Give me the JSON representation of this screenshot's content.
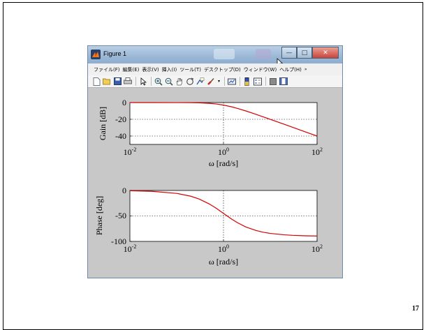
{
  "slide": {
    "page_number": "17"
  },
  "window": {
    "title": "Figure 1",
    "controls": {
      "minimize": "—",
      "maximize": "□",
      "close": "✕"
    }
  },
  "menubar": {
    "items": [
      "ファイル(F)",
      "編集(E)",
      "表示(V)",
      "挿入(I)",
      "ツール(T)",
      "デスクトップ(D)",
      "ウィンドウ(W)",
      "ヘルプ(H)"
    ],
    "overflow": "»"
  },
  "toolbar": {
    "icons": [
      "new-figure-icon",
      "open-file-icon",
      "save-icon",
      "print-icon",
      "edit-plot-arrow-icon",
      "zoom-in-icon",
      "zoom-out-icon",
      "pan-hand-icon",
      "rotate-3d-icon",
      "data-cursor-icon",
      "brush-icon",
      "link-plot-icon",
      "colorbar-icon",
      "legend-icon",
      "hide-plot-tools-icon",
      "show-plot-tools-icon"
    ]
  },
  "colors": {
    "curve": "#d40000",
    "axes_bg": "#ffffff",
    "figure_bg": "#c8c8c8"
  },
  "chart_data": [
    {
      "type": "line",
      "series_name": "",
      "xscale": "log",
      "xlim": [
        0.01,
        100
      ],
      "ylim": [
        -50,
        0
      ],
      "ylabel": "Gain [dB]",
      "xlabel": "ω [rad/s]",
      "yticks": [
        0,
        -20,
        -40
      ],
      "xticks": [
        0.01,
        1,
        100
      ],
      "xtick_labels": [
        {
          "base": "10",
          "exp": "-2"
        },
        {
          "base": "10",
          "exp": "0"
        },
        {
          "base": "10",
          "exp": "2"
        }
      ],
      "grid": "dotted",
      "x": [
        0.01,
        0.03,
        0.1,
        0.2,
        0.3,
        0.5,
        0.7,
        1,
        1.5,
        2,
        3,
        5,
        7,
        10,
        20,
        30,
        50,
        70,
        100
      ],
      "y": [
        0,
        0,
        -0.04,
        -0.17,
        -0.37,
        -0.97,
        -1.7,
        -3.01,
        -5.12,
        -6.99,
        -10.0,
        -14.15,
        -17.0,
        -20.04,
        -26.03,
        -29.54,
        -33.98,
        -36.9,
        -40.0
      ]
    },
    {
      "type": "line",
      "series_name": "",
      "xscale": "log",
      "xlim": [
        0.01,
        100
      ],
      "ylim": [
        -100,
        0
      ],
      "ylabel": "Phase [deg]",
      "xlabel": "ω [rad/s]",
      "yticks": [
        0,
        -50,
        -100
      ],
      "xticks": [
        0.01,
        1,
        100
      ],
      "xtick_labels": [
        {
          "base": "10",
          "exp": "-2"
        },
        {
          "base": "10",
          "exp": "0"
        },
        {
          "base": "10",
          "exp": "2"
        }
      ],
      "grid": "dotted",
      "x": [
        0.01,
        0.03,
        0.1,
        0.2,
        0.3,
        0.5,
        0.7,
        1,
        1.5,
        2,
        3,
        5,
        7,
        10,
        20,
        30,
        50,
        70,
        100
      ],
      "y": [
        -0.6,
        -1.7,
        -5.7,
        -11.3,
        -16.7,
        -26.6,
        -35.0,
        -45.0,
        -56.3,
        -63.4,
        -71.6,
        -78.7,
        -81.9,
        -84.3,
        -87.1,
        -88.1,
        -88.9,
        -89.2,
        -89.4
      ]
    }
  ]
}
